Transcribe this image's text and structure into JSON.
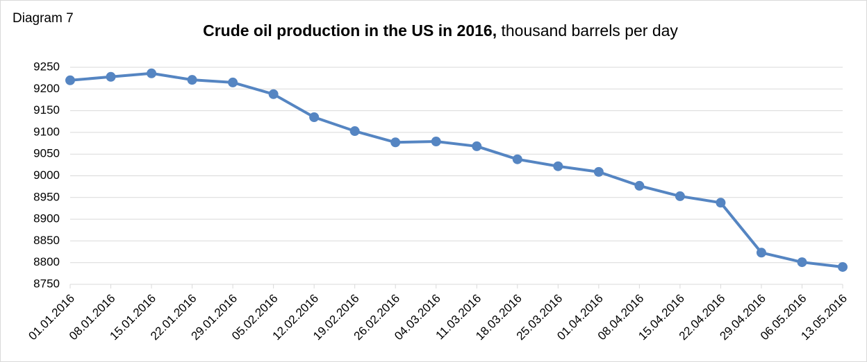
{
  "label": "Diagram 7",
  "chart_data": {
    "type": "line",
    "title": "Crude oil production in the US in 2016,",
    "subtitle": "thousand barrels per day",
    "categories": [
      "01.01.2016",
      "08.01.2016",
      "15.01.2016",
      "22.01.2016",
      "29.01.2016",
      "05.02.2016",
      "12.02.2016",
      "19.02.2016",
      "26.02.2016",
      "04.03.2016",
      "11.03.2016",
      "18.03.2016",
      "25.03.2016",
      "01.04.2016",
      "08.04.2016",
      "15.04.2016",
      "22.04.2016",
      "29.04.2016",
      "06.05.2016",
      "13.05.2016"
    ],
    "values": [
      9220,
      9228,
      9236,
      9221,
      9215,
      9188,
      9135,
      9103,
      9077,
      9079,
      9068,
      9038,
      9022,
      9009,
      8977,
      8953,
      8938,
      8823,
      8801,
      8790
    ],
    "color": "#5585c2",
    "ylim": [
      8750,
      9250
    ],
    "yticks": [
      8750,
      8800,
      8850,
      8900,
      8950,
      9000,
      9050,
      9100,
      9150,
      9200,
      9250
    ],
    "grid": true
  }
}
